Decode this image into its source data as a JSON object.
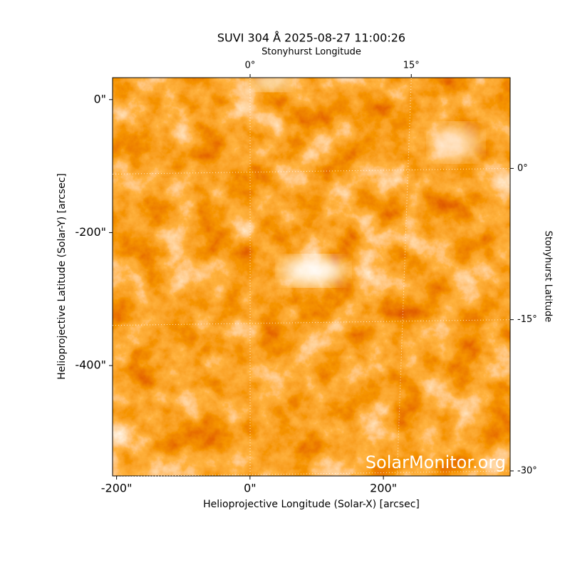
{
  "chart_data": {
    "type": "image",
    "title": "SUVI 304 Å 2025-08-27 11:00:26",
    "xlabel": "Helioprojective Longitude (Solar-X) [arcsec]",
    "ylabel": "Helioprojective Latitude (Solar-Y) [arcsec]",
    "x2label": "Stonyhurst Longitude",
    "y2label": "Stonyhurst Latitude",
    "annotation": "SolarMonitor.org",
    "xlim": [
      -206,
      390
    ],
    "ylim": [
      -566,
      33
    ],
    "xticks": [
      {
        "value": -200,
        "label": "-200\""
      },
      {
        "value": 0,
        "label": "0\""
      },
      {
        "value": 200,
        "label": "200\""
      }
    ],
    "yticks": [
      {
        "value": 0,
        "label": "0\""
      },
      {
        "value": -200,
        "label": "-200\""
      },
      {
        "value": -400,
        "label": "-400\""
      }
    ],
    "x2lim": [
      -12.8,
      24.2
    ],
    "x2ticks": [
      {
        "value": 0,
        "label": "0°"
      },
      {
        "value": 15,
        "label": "15°"
      }
    ],
    "y2lim": [
      9,
      -30.5
    ],
    "y2ticks": [
      {
        "value": 0,
        "label": "0°"
      },
      {
        "value": -15,
        "label": "-15°"
      },
      {
        "value": -30,
        "label": "-30°"
      }
    ],
    "grid": true
  }
}
